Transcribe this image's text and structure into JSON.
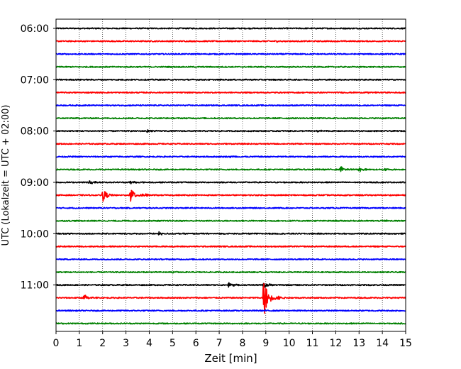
{
  "chart_data": {
    "type": "line",
    "title": "",
    "xlabel": "Zeit  [min]",
    "ylabel": "UTC (Lokalzeit = UTC + 02:00)",
    "xlim": [
      0,
      15
    ],
    "x_ticks": [
      "0",
      "1",
      "2",
      "3",
      "4",
      "5",
      "6",
      "7",
      "8",
      "9",
      "10",
      "11",
      "12",
      "13",
      "14",
      "15"
    ],
    "y_tick_labels": [
      "06:00",
      "07:00",
      "08:00",
      "09:00",
      "10:00",
      "11:00"
    ],
    "grid": "vertical dotted",
    "trace_interval_minutes": 15,
    "color_cycle": [
      "#000000",
      "#ff0000",
      "#0000ff",
      "#008000"
    ],
    "traces": [
      {
        "start": "06:00",
        "color": "#000000",
        "events": []
      },
      {
        "start": "06:15",
        "color": "#ff0000",
        "events": [
          {
            "t": 9.5,
            "amp": 0.18
          }
        ]
      },
      {
        "start": "06:30",
        "color": "#0000ff",
        "events": []
      },
      {
        "start": "06:45",
        "color": "#008000",
        "events": []
      },
      {
        "start": "07:00",
        "color": "#000000",
        "events": []
      },
      {
        "start": "07:15",
        "color": "#ff0000",
        "events": [
          {
            "t": 13.4,
            "amp": 0.15
          }
        ]
      },
      {
        "start": "07:30",
        "color": "#0000ff",
        "events": []
      },
      {
        "start": "07:45",
        "color": "#008000",
        "events": []
      },
      {
        "start": "08:00",
        "color": "#000000",
        "events": [
          {
            "t": 3.9,
            "amp": 0.25
          },
          {
            "t": 11.2,
            "amp": 0.15
          }
        ]
      },
      {
        "start": "08:15",
        "color": "#ff0000",
        "events": []
      },
      {
        "start": "08:30",
        "color": "#0000ff",
        "events": [
          {
            "t": 7.5,
            "amp": 0.15
          }
        ]
      },
      {
        "start": "08:45",
        "color": "#008000",
        "events": [
          {
            "t": 12.2,
            "amp": 0.55
          },
          {
            "t": 13.0,
            "amp": 0.3
          },
          {
            "t": 14.0,
            "amp": 0.25
          }
        ]
      },
      {
        "start": "09:00",
        "color": "#000000",
        "events": [
          {
            "t": 1.4,
            "amp": 0.35
          },
          {
            "t": 3.2,
            "amp": 0.3
          }
        ]
      },
      {
        "start": "09:15",
        "color": "#ff0000",
        "events": [
          {
            "t": 2.0,
            "amp": 0.9
          },
          {
            "t": 3.2,
            "amp": 1.1
          },
          {
            "t": 3.7,
            "amp": 0.3
          }
        ]
      },
      {
        "start": "09:30",
        "color": "#0000ff",
        "events": []
      },
      {
        "start": "09:45",
        "color": "#008000",
        "events": [
          {
            "t": 14.0,
            "amp": 0.15
          }
        ]
      },
      {
        "start": "10:00",
        "color": "#000000",
        "events": [
          {
            "t": 4.4,
            "amp": 0.25
          }
        ]
      },
      {
        "start": "10:15",
        "color": "#ff0000",
        "events": []
      },
      {
        "start": "10:30",
        "color": "#0000ff",
        "events": []
      },
      {
        "start": "10:45",
        "color": "#008000",
        "events": [
          {
            "t": 5.0,
            "amp": 0.15
          }
        ]
      },
      {
        "start": "11:00",
        "color": "#000000",
        "events": [
          {
            "t": 7.4,
            "amp": 0.4
          },
          {
            "t": 8.9,
            "amp": 0.5
          }
        ]
      },
      {
        "start": "11:15",
        "color": "#ff0000",
        "events": [
          {
            "t": 1.2,
            "amp": 0.5
          },
          {
            "t": 8.9,
            "amp": 3.0
          },
          {
            "t": 9.4,
            "amp": 0.6
          }
        ]
      },
      {
        "start": "11:30",
        "color": "#0000ff",
        "events": []
      },
      {
        "start": "11:45",
        "color": "#008000",
        "events": []
      }
    ]
  }
}
